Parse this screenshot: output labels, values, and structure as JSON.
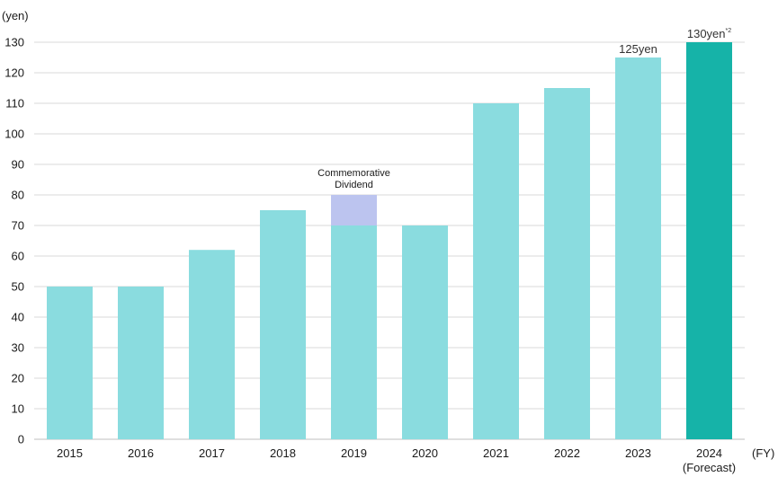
{
  "chart_data": {
    "type": "bar",
    "stacked": true,
    "ylabel": "(yen)",
    "xlabel": "(FY)",
    "ylim": [
      0,
      130
    ],
    "yticks": [
      0,
      10,
      20,
      30,
      40,
      50,
      60,
      70,
      80,
      90,
      100,
      110,
      120,
      130
    ],
    "grid": true,
    "categories": [
      "2015",
      "2016",
      "2017",
      "2018",
      "2019",
      "2020",
      "2021",
      "2022",
      "2023",
      "2024"
    ],
    "category_sublabels": [
      "",
      "",
      "",
      "",
      "",
      "",
      "",
      "",
      "",
      "(Forecast)"
    ],
    "series": [
      {
        "values": [
          50,
          50,
          62,
          75,
          70,
          70,
          110,
          115,
          125,
          130
        ],
        "color": "#8adcdf",
        "highlight_color": "#16b3a8",
        "highlight_index": 9
      },
      {
        "values": [
          0,
          0,
          0,
          0,
          10,
          0,
          0,
          0,
          0,
          0
        ],
        "color": "#bcc4ef"
      }
    ],
    "annotations": [
      {
        "category": "2019",
        "lines": [
          "Commemorative",
          "Dividend"
        ]
      }
    ],
    "data_labels": [
      {
        "category": "2023",
        "text": "125yen",
        "sup": ""
      },
      {
        "category": "2024",
        "text": "130yen",
        "sup": "*2"
      }
    ],
    "colors": {
      "grid": "#d9d9d9",
      "axis": "#bfbfbf"
    }
  }
}
